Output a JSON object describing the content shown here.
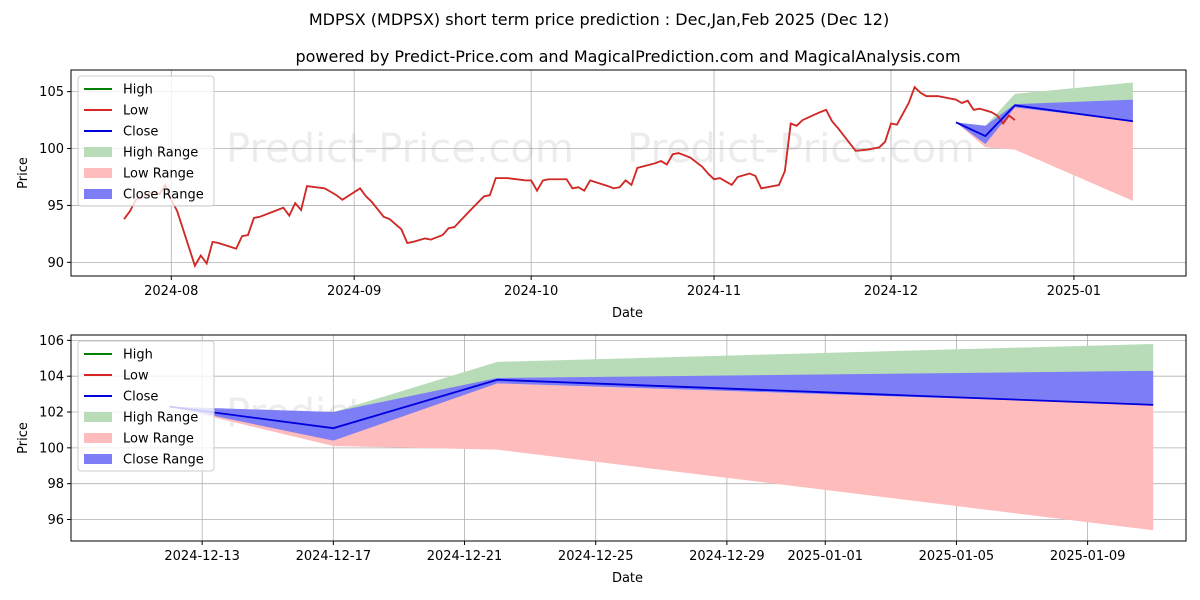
{
  "title": "MDPSX (MDPSX) short term price prediction : Dec,Jan,Feb 2025 (Dec 12)",
  "subtitle": "powered by Predict-Price.com and MagicalPrediction.com and MagicalAnalysis.com",
  "watermark": "Predict-Price.com",
  "colors": {
    "high": "#008000",
    "low": "#d62728",
    "close": "#0000dd",
    "high_range": "#b8dcb8",
    "low_range": "#ffbcbc",
    "close_range": "#7d7df5",
    "grid": "#b0b0b0"
  },
  "legend": {
    "placement": "top-left",
    "items": [
      {
        "label": "High",
        "kind": "line",
        "color": "#008000"
      },
      {
        "label": "Low",
        "kind": "line",
        "color": "#d62728"
      },
      {
        "label": "Close",
        "kind": "line",
        "color": "#0000dd"
      },
      {
        "label": "High Range",
        "kind": "patch",
        "color": "#b8dcb8"
      },
      {
        "label": "Low Range",
        "kind": "patch",
        "color": "#ffbcbc"
      },
      {
        "label": "Close Range",
        "kind": "patch",
        "color": "#7d7df5"
      }
    ]
  },
  "chart_data": [
    {
      "type": "line",
      "xlabel": "Date",
      "ylabel": "Price",
      "grid": true,
      "xlim": [
        "2024-07-15",
        "2025-01-20"
      ],
      "ylim": [
        88.8,
        106.9
      ],
      "xticks": [
        {
          "date": "2024-08-01",
          "label": "2024-08"
        },
        {
          "date": "2024-09-01",
          "label": "2024-09"
        },
        {
          "date": "2024-10-01",
          "label": "2024-10"
        },
        {
          "date": "2024-11-01",
          "label": "2024-11"
        },
        {
          "date": "2024-12-01",
          "label": "2024-12"
        },
        {
          "date": "2025-01-01",
          "label": "2025-01"
        }
      ],
      "yticks": [
        90,
        95,
        100,
        105
      ],
      "history": [
        [
          "2024-07-24",
          93.8
        ],
        [
          "2024-07-25",
          94.5
        ],
        [
          "2024-07-26",
          95.5
        ],
        [
          "2024-07-29",
          96.2
        ],
        [
          "2024-07-30",
          96.0
        ],
        [
          "2024-07-31",
          96.8
        ],
        [
          "2024-08-01",
          95.5
        ],
        [
          "2024-08-02",
          94.5
        ],
        [
          "2024-08-05",
          89.7
        ],
        [
          "2024-08-06",
          90.6
        ],
        [
          "2024-08-07",
          89.9
        ],
        [
          "2024-08-08",
          91.8
        ],
        [
          "2024-08-09",
          91.7
        ],
        [
          "2024-08-12",
          91.2
        ],
        [
          "2024-08-13",
          92.3
        ],
        [
          "2024-08-14",
          92.4
        ],
        [
          "2024-08-15",
          93.9
        ],
        [
          "2024-08-16",
          94.0
        ],
        [
          "2024-08-19",
          94.6
        ],
        [
          "2024-08-20",
          94.8
        ],
        [
          "2024-08-21",
          94.1
        ],
        [
          "2024-08-22",
          95.2
        ],
        [
          "2024-08-23",
          94.6
        ],
        [
          "2024-08-24",
          96.7
        ],
        [
          "2024-08-27",
          96.5
        ],
        [
          "2024-08-28",
          96.2
        ],
        [
          "2024-08-29",
          95.9
        ],
        [
          "2024-08-30",
          95.5
        ],
        [
          "2024-09-02",
          96.5
        ],
        [
          "2024-09-03",
          95.8
        ],
        [
          "2024-09-04",
          95.3
        ],
        [
          "2024-09-06",
          94.0
        ],
        [
          "2024-09-07",
          93.8
        ],
        [
          "2024-09-09",
          92.9
        ],
        [
          "2024-09-10",
          91.7
        ],
        [
          "2024-09-11",
          91.8
        ],
        [
          "2024-09-13",
          92.1
        ],
        [
          "2024-09-14",
          92.0
        ],
        [
          "2024-09-16",
          92.4
        ],
        [
          "2024-09-17",
          93.0
        ],
        [
          "2024-09-18",
          93.1
        ],
        [
          "2024-09-20",
          94.2
        ],
        [
          "2024-09-23",
          95.8
        ],
        [
          "2024-09-24",
          95.9
        ],
        [
          "2024-09-25",
          97.4
        ],
        [
          "2024-09-27",
          97.4
        ],
        [
          "2024-09-30",
          97.2
        ],
        [
          "2024-10-01",
          97.2
        ],
        [
          "2024-10-02",
          96.3
        ],
        [
          "2024-10-03",
          97.2
        ],
        [
          "2024-10-04",
          97.3
        ],
        [
          "2024-10-07",
          97.3
        ],
        [
          "2024-10-08",
          96.5
        ],
        [
          "2024-10-09",
          96.6
        ],
        [
          "2024-10-10",
          96.3
        ],
        [
          "2024-10-11",
          97.2
        ],
        [
          "2024-10-14",
          96.7
        ],
        [
          "2024-10-15",
          96.5
        ],
        [
          "2024-10-16",
          96.6
        ],
        [
          "2024-10-17",
          97.2
        ],
        [
          "2024-10-18",
          96.8
        ],
        [
          "2024-10-19",
          98.3
        ],
        [
          "2024-10-22",
          98.7
        ],
        [
          "2024-10-23",
          98.9
        ],
        [
          "2024-10-24",
          98.6
        ],
        [
          "2024-10-25",
          99.5
        ],
        [
          "2024-10-26",
          99.6
        ],
        [
          "2024-10-28",
          99.2
        ],
        [
          "2024-10-30",
          98.4
        ],
        [
          "2024-10-31",
          97.8
        ],
        [
          "2024-11-01",
          97.3
        ],
        [
          "2024-11-02",
          97.4
        ],
        [
          "2024-11-04",
          96.8
        ],
        [
          "2024-11-05",
          97.5
        ],
        [
          "2024-11-07",
          97.8
        ],
        [
          "2024-11-08",
          97.6
        ],
        [
          "2024-11-09",
          96.5
        ],
        [
          "2024-11-11",
          96.7
        ],
        [
          "2024-11-12",
          96.8
        ],
        [
          "2024-11-13",
          98.0
        ],
        [
          "2024-11-14",
          102.2
        ],
        [
          "2024-11-15",
          102.0
        ],
        [
          "2024-11-16",
          102.5
        ],
        [
          "2024-11-19",
          103.2
        ],
        [
          "2024-11-20",
          103.4
        ],
        [
          "2024-11-21",
          102.4
        ],
        [
          "2024-11-22",
          101.8
        ],
        [
          "2024-11-25",
          99.8
        ],
        [
          "2024-11-27",
          99.9
        ],
        [
          "2024-11-29",
          100.1
        ],
        [
          "2024-11-30",
          100.6
        ],
        [
          "2024-12-01",
          102.2
        ],
        [
          "2024-12-02",
          102.1
        ],
        [
          "2024-12-04",
          104.0
        ],
        [
          "2024-12-05",
          105.4
        ],
        [
          "2024-12-06",
          104.9
        ],
        [
          "2024-12-07",
          104.6
        ],
        [
          "2024-12-09",
          104.6
        ],
        [
          "2024-12-11",
          104.4
        ],
        [
          "2024-12-12",
          104.3
        ],
        [
          "2024-12-13",
          104.0
        ],
        [
          "2024-12-14",
          104.2
        ],
        [
          "2024-12-15",
          103.4
        ],
        [
          "2024-12-16",
          103.5
        ],
        [
          "2024-12-18",
          103.2
        ],
        [
          "2024-12-19",
          102.9
        ],
        [
          "2024-12-20",
          102.2
        ],
        [
          "2024-12-21",
          102.9
        ],
        [
          "2024-12-22",
          102.5
        ]
      ],
      "forecast_dates": [
        "2024-12-12",
        "2024-12-17",
        "2024-12-22",
        "2025-01-11"
      ],
      "close": [
        102.3,
        101.1,
        103.8,
        102.4
      ],
      "high_range": {
        "upper": [
          102.3,
          102.0,
          104.8,
          105.8
        ],
        "lower": [
          102.3,
          102.0,
          103.8,
          104.3
        ]
      },
      "low_range": {
        "upper": [
          102.3,
          100.9,
          103.6,
          102.4
        ],
        "lower": [
          102.3,
          100.1,
          99.9,
          95.4
        ]
      },
      "close_range": {
        "upper": [
          102.3,
          102.0,
          103.9,
          104.3
        ],
        "lower": [
          102.3,
          100.4,
          103.6,
          102.4
        ]
      }
    },
    {
      "type": "line",
      "xlabel": "Date",
      "ylabel": "Price",
      "grid": true,
      "xlim": [
        "2024-12-09",
        "2025-01-12"
      ],
      "ylim": [
        94.8,
        106.3
      ],
      "xticks": [
        {
          "date": "2024-12-13",
          "label": "2024-12-13"
        },
        {
          "date": "2024-12-17",
          "label": "2024-12-17"
        },
        {
          "date": "2024-12-21",
          "label": "2024-12-21"
        },
        {
          "date": "2024-12-25",
          "label": "2024-12-25"
        },
        {
          "date": "2024-12-29",
          "label": "2024-12-29"
        },
        {
          "date": "2025-01-01",
          "label": "2025-01-01"
        },
        {
          "date": "2025-01-05",
          "label": "2025-01-05"
        },
        {
          "date": "2025-01-09",
          "label": "2025-01-09"
        }
      ],
      "yticks": [
        96,
        98,
        100,
        102,
        104,
        106
      ],
      "forecast_dates": [
        "2024-12-12",
        "2024-12-17",
        "2024-12-22",
        "2025-01-11"
      ],
      "close": [
        102.3,
        101.1,
        103.8,
        102.4
      ],
      "high_range": {
        "upper": [
          102.3,
          102.0,
          104.8,
          105.8
        ],
        "lower": [
          102.3,
          102.0,
          103.8,
          104.3
        ]
      },
      "low_range": {
        "upper": [
          102.3,
          100.9,
          103.6,
          102.4
        ],
        "lower": [
          102.3,
          100.1,
          99.9,
          95.4
        ]
      },
      "close_range": {
        "upper": [
          102.3,
          102.0,
          103.9,
          104.3
        ],
        "lower": [
          102.3,
          100.4,
          103.6,
          102.4
        ]
      }
    }
  ]
}
